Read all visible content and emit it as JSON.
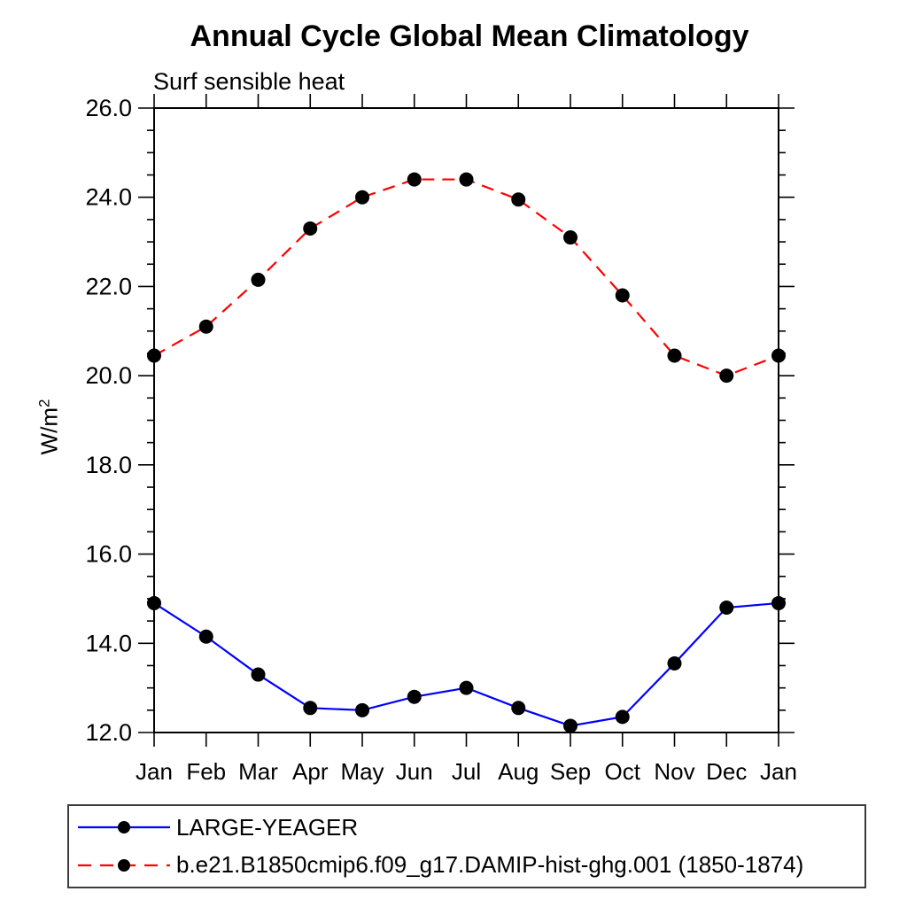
{
  "chart": {
    "title": "Annual Cycle Global Mean Climatology",
    "subtitle": "Surf sensible heat",
    "ylabel_base": "W/m",
    "ylabel_exp": "2"
  },
  "chart_data": {
    "type": "line",
    "title": "Annual Cycle Global Mean Climatology",
    "subtitle": "Surf sensible heat",
    "xlabel": "",
    "ylabel": "W/m^2",
    "categories": [
      "Jan",
      "Feb",
      "Mar",
      "Apr",
      "May",
      "Jun",
      "Jul",
      "Aug",
      "Sep",
      "Oct",
      "Nov",
      "Dec",
      "Jan"
    ],
    "ylim": [
      12.0,
      26.0
    ],
    "y_major_step": 2.0,
    "y_minor_step": 0.5,
    "y_tick_labels": [
      "12.0",
      "14.0",
      "16.0",
      "18.0",
      "20.0",
      "22.0",
      "24.0",
      "26.0"
    ],
    "grid": false,
    "legend_position": "bottom-left-box",
    "axis_color": "#000000",
    "marker": {
      "shape": "circle",
      "color": "#000000",
      "radius": 8
    },
    "series": [
      {
        "name": "LARGE-YEAGER",
        "color": "#0000ff",
        "line_style": "solid",
        "values": [
          14.9,
          14.15,
          13.3,
          12.55,
          12.5,
          12.8,
          13.0,
          12.55,
          12.15,
          12.35,
          13.55,
          14.8,
          14.9
        ]
      },
      {
        "name": "b.e21.B1850cmip6.f09_g17.DAMIP-hist-ghg.001 (1850-1874)",
        "color": "#ff0000",
        "line_style": "dashed",
        "values": [
          20.45,
          21.1,
          22.15,
          23.3,
          24.0,
          24.4,
          24.4,
          23.95,
          23.1,
          21.8,
          20.45,
          20.0,
          20.45
        ]
      }
    ]
  }
}
